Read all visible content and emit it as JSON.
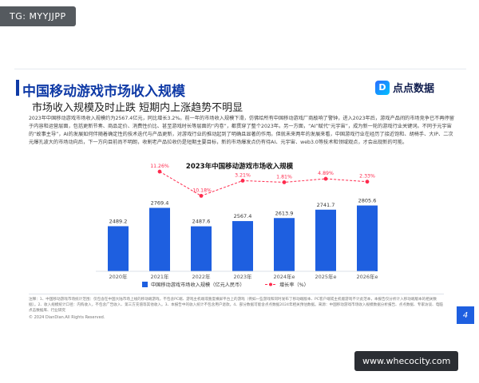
{
  "tag": "TG: MYYJJPP",
  "slide": {
    "title": "中国移动游戏市场收入规模",
    "subtitle": "市场收入规模及时止跌 短期内上涨趋势不明显",
    "brand": "点点数据",
    "intro": "2023年中国移动游戏市场收入规模约为2567.4亿元，同比增长3.2%。前一年的市场收入规模下滑，仿佛给所有中国移动游戏厂商敲响了警钟，进入2023年后，游戏产品间的市场竞争已不再停留于内容和运营层面，包括更新节奏、商品定价、消费性价比、甚至游戏时长等层面的“内卷”，都贯穿了整个2023年。另一方面，“AI”赋代“元宇宙”，成为新一轮的游戏行业关键词。不同于元宇宙的“故事主导”，AI的发展如何伴随着确定性的技术迭代与产品更新，对游戏行业的推动起到了明确且显著的作用。但就未来两年的发展来看，中国游戏行业在经历了接近饱和、胡椅手、大IP、二次元爆孔波大的市场动向后，下一方向目前尚不明朗，收割老产品拉收仍是短期主要目标，新的市场爆发点仍有待AI、元宇宙、web3.0等技术和领域观点，才会出现新的可能。",
    "notes": "注释：1、中国移动游戏市场统计范围：仅包含在中国大陆市场上线的移动端游戏，不包含PC端、游戏主机端或重度横屏平台上的游戏（例如一些游戏和同时发布了移动端版本、PC客户端或主机版游戏不计此范本，本报告仅分析计入移动端版本的相关数据）。2、收入规模统计口径：内购收入，不包含广告收入、第三方充值等其他收入。3、本报告中的收入统计不包含用户退款。4、部分数据可能含点点数据2024年相关预估数据。来源：中国移动游戏市场收入规模数据分析报告、点点数据、专家访谈、电脑点击数据库、行业研究",
    "copyright": "© 2024 DianDian.All Rights Reserved.",
    "page_number": "4"
  },
  "watermark": "www.whecocity.com",
  "chart_data": {
    "type": "bar",
    "title": "2023年中国移动游戏市场收入规模",
    "categories": [
      "2020年",
      "2021年",
      "2022年",
      "2023年",
      "2024年e",
      "2025年e",
      "2026年e"
    ],
    "series": [
      {
        "name": "中国移动游戏市场收入规模（亿元人民币）",
        "values": [
          2489.2,
          2769.4,
          2487.6,
          2567.4,
          2613.9,
          2741.7,
          2805.6
        ],
        "labels": [
          "2489.2",
          "2769.4",
          "2487.6",
          "2567.4",
          "2613.9",
          "2741.7",
          "2805.6"
        ],
        "color": "#1e5fe0"
      },
      {
        "name": "增长率（%）",
        "values": [
          null,
          11.26,
          -10.18,
          3.21,
          1.81,
          4.89,
          2.33
        ],
        "labels": [
          "",
          "11.26%",
          "-10.18%",
          "3.21%",
          "1.81%",
          "4.89%",
          "2.33%"
        ],
        "color": "#ff2a4d"
      }
    ],
    "legend_placement": "bottom",
    "grid": false
  }
}
